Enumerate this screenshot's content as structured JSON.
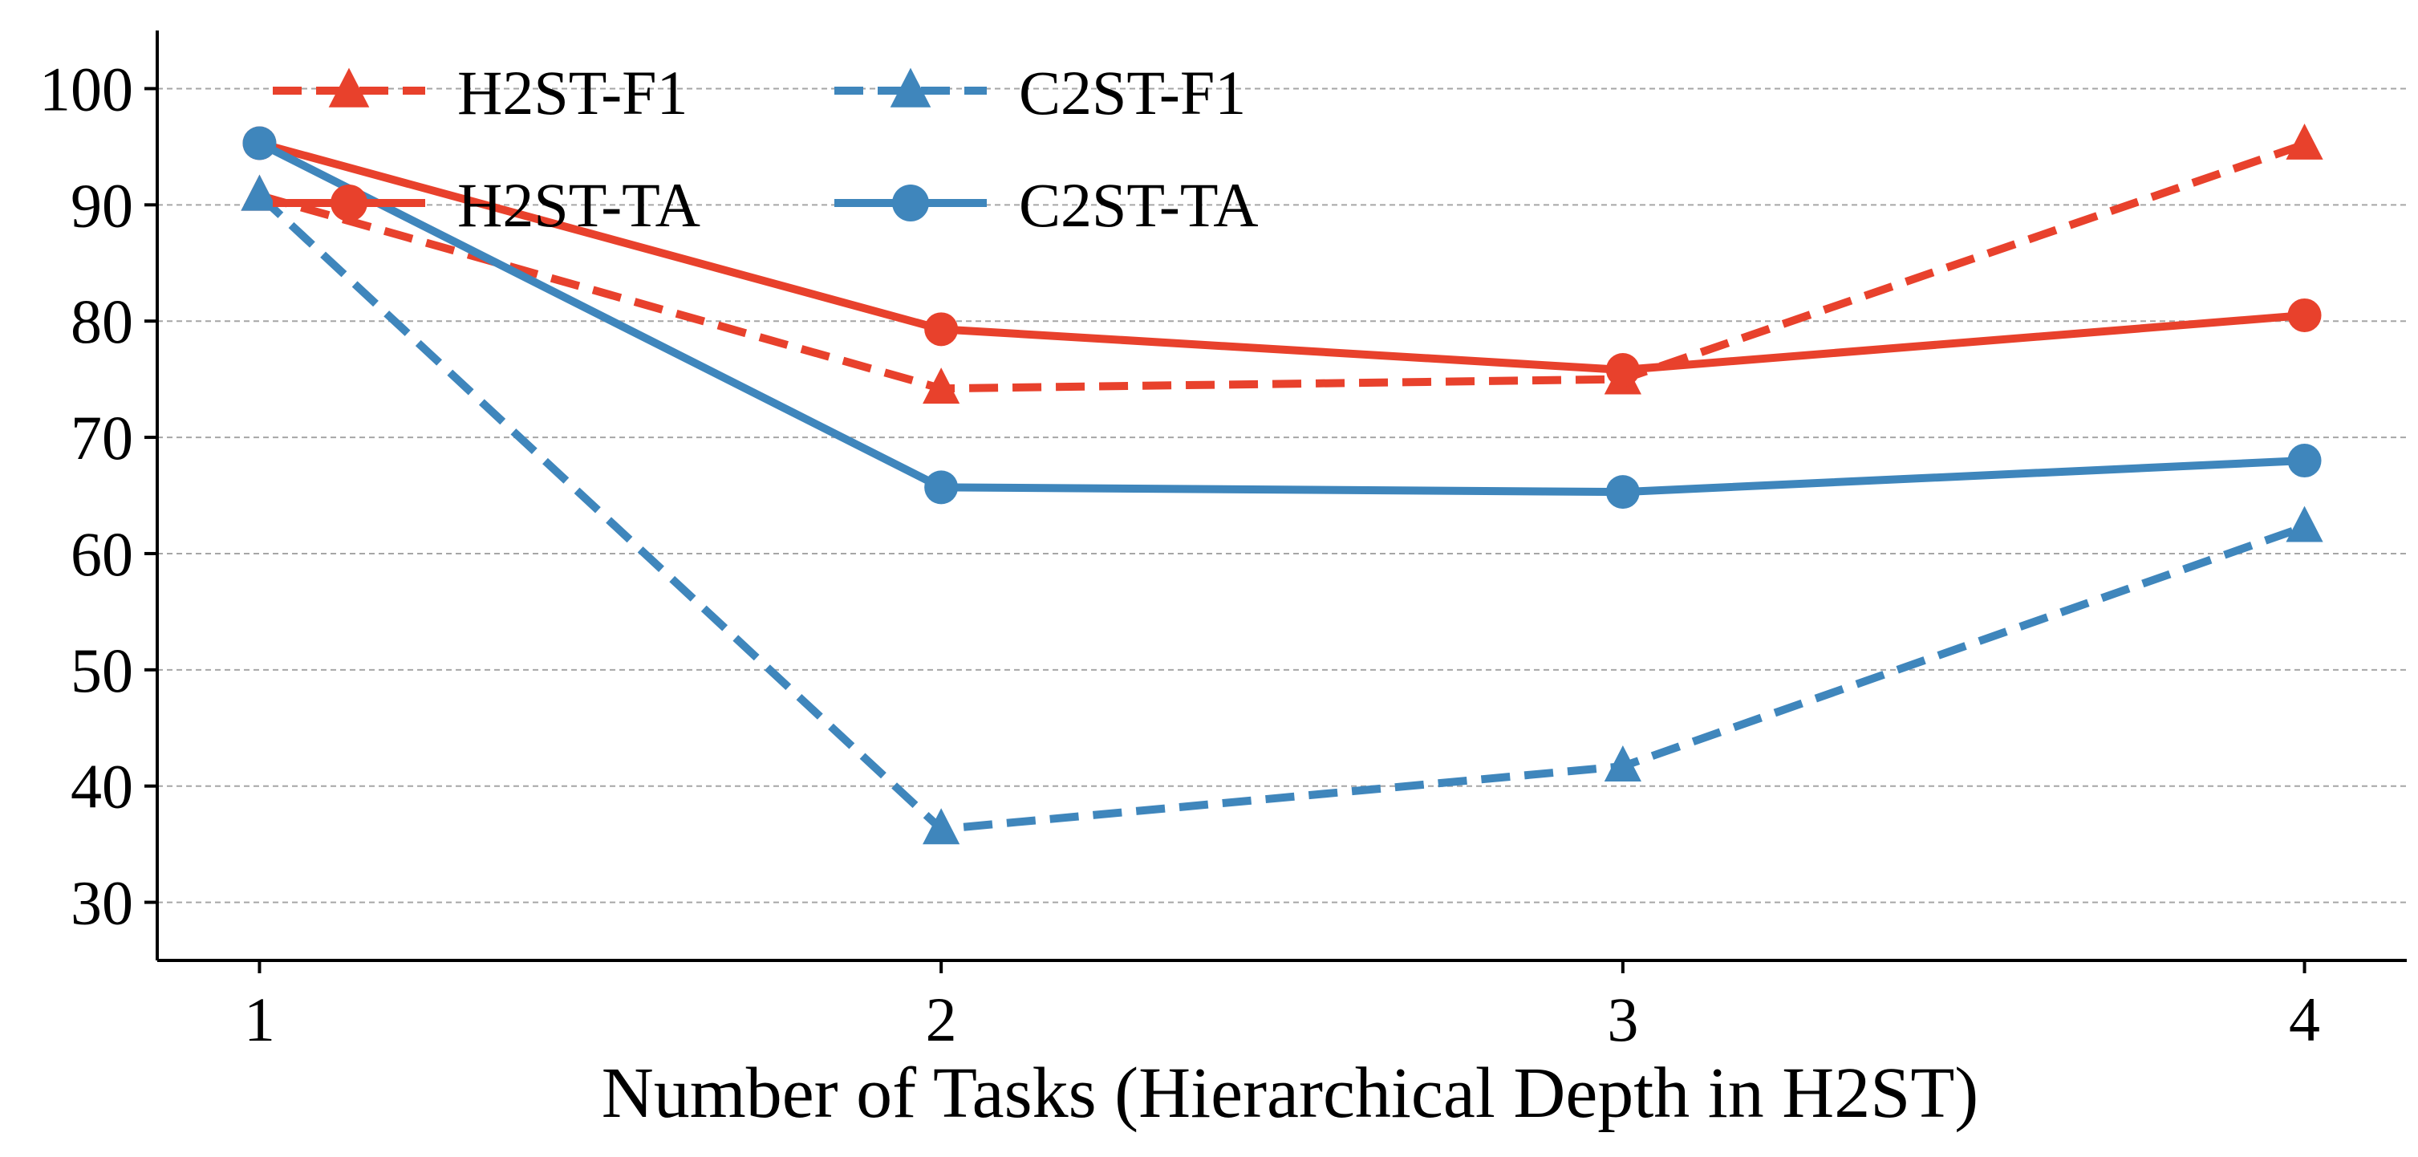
{
  "chart_data": {
    "type": "line",
    "title": "",
    "xlabel": "Number of Tasks (Hierarchical Depth in H2ST)",
    "ylabel": "",
    "x": [
      1,
      2,
      3,
      4
    ],
    "xticks": [
      "1",
      "2",
      "3",
      "4"
    ],
    "yticks": [
      "30",
      "40",
      "50",
      "60",
      "70",
      "80",
      "90",
      "100"
    ],
    "ylim": [
      25,
      105
    ],
    "xlim": [
      0.85,
      4.15
    ],
    "grid": "horizontal dashed",
    "legend_position": "top-left",
    "series": [
      {
        "name": "H2ST-F1",
        "values": [
          90.8,
          74.2,
          75.0,
          95.2
        ],
        "color": "#e8412c",
        "linestyle": "dashed",
        "marker": "triangle"
      },
      {
        "name": "H2ST-TA",
        "values": [
          95.3,
          79.3,
          75.8,
          80.5
        ],
        "color": "#e8412c",
        "linestyle": "solid",
        "marker": "circle"
      },
      {
        "name": "C2ST-F1",
        "values": [
          90.8,
          36.3,
          41.7,
          62.3
        ],
        "color": "#3f86bc",
        "linestyle": "dashed",
        "marker": "triangle"
      },
      {
        "name": "C2ST-TA",
        "values": [
          95.3,
          65.7,
          65.3,
          68.0
        ],
        "color": "#3f86bc",
        "linestyle": "solid",
        "marker": "circle"
      }
    ]
  }
}
